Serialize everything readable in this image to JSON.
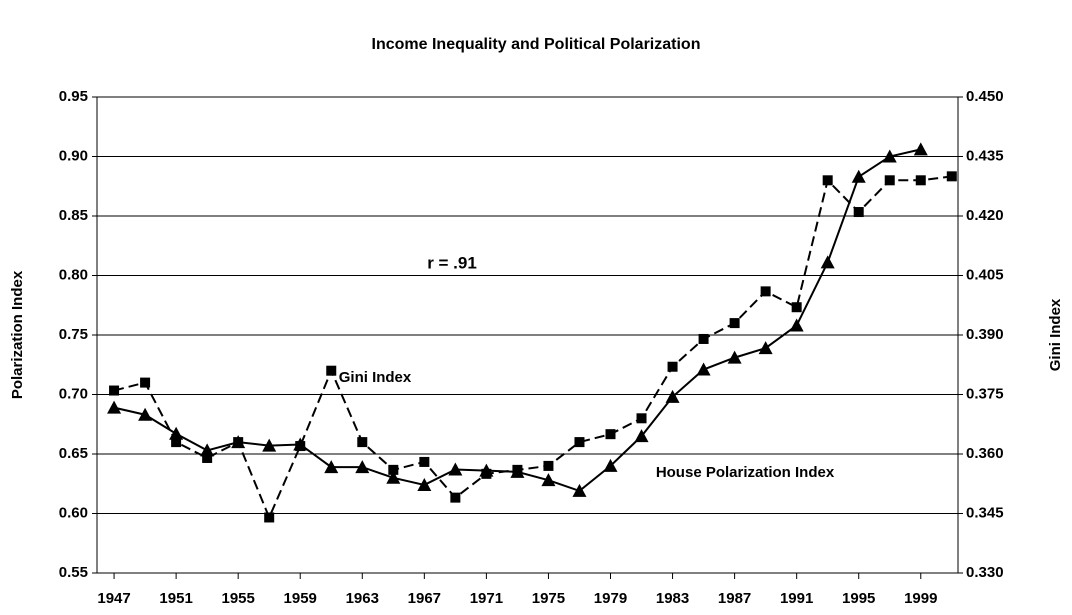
{
  "chart_data": {
    "type": "line",
    "title": "Income Inequality and Political Polarization",
    "ylabel": "Polarization Index",
    "y2label": "Gini Index",
    "annotations": [
      "r = .91",
      "Gini Index",
      "House Polarization Index"
    ],
    "x": [
      1947,
      1949,
      1951,
      1953,
      1955,
      1957,
      1959,
      1961,
      1963,
      1965,
      1967,
      1969,
      1971,
      1973,
      1975,
      1977,
      1979,
      1981,
      1983,
      1985,
      1987,
      1989,
      1991,
      1993,
      1995,
      1997,
      1999,
      2001
    ],
    "series": [
      {
        "name": "House Polarization Index",
        "color": "#000000",
        "marker": "triangle",
        "dash": false,
        "values": [
          0.689,
          0.683,
          0.667,
          0.653,
          0.66,
          0.657,
          0.658,
          0.639,
          0.639,
          0.63,
          0.624,
          0.637,
          0.636,
          0.635,
          0.628,
          0.619,
          0.64,
          0.665,
          0.698,
          0.721,
          0.731,
          0.739,
          0.758,
          0.811,
          0.883,
          0.9,
          0.906,
          null
        ]
      },
      {
        "name": "Gini Index",
        "color": "#000000",
        "marker": "square",
        "dash": true,
        "axis": "y2",
        "values": [
          0.376,
          0.378,
          0.363,
          0.359,
          0.363,
          0.344,
          0.362,
          0.381,
          0.363,
          0.356,
          0.358,
          0.349,
          0.355,
          0.356,
          0.357,
          0.363,
          0.365,
          0.369,
          0.382,
          0.389,
          0.393,
          0.401,
          0.397,
          0.429,
          0.421,
          0.429,
          0.429,
          0.43
        ]
      }
    ],
    "xlim": [
      1945.9,
      2001.4
    ],
    "xticks": [
      1947,
      1951,
      1955,
      1959,
      1963,
      1967,
      1971,
      1975,
      1979,
      1983,
      1987,
      1991,
      1995,
      1999
    ],
    "ylim": [
      0.55,
      0.95
    ],
    "yticks": [
      {
        "value": 0.55,
        "label": "0.55"
      },
      {
        "value": 0.6,
        "label": "0.60"
      },
      {
        "value": 0.65,
        "label": "0.65"
      },
      {
        "value": 0.7,
        "label": "0.70"
      },
      {
        "value": 0.75,
        "label": "0.75"
      },
      {
        "value": 0.8,
        "label": "0.80"
      },
      {
        "value": 0.85,
        "label": "0.85"
      },
      {
        "value": 0.9,
        "label": "0.90"
      },
      {
        "value": 0.95,
        "label": "0.95"
      }
    ],
    "y2lim": [
      0.33,
      0.45
    ],
    "y2ticks": [
      {
        "value": 0.33,
        "label": "0.330"
      },
      {
        "value": 0.345,
        "label": "0.345"
      },
      {
        "value": 0.36,
        "label": "0.360"
      },
      {
        "value": 0.375,
        "label": "0.375"
      },
      {
        "value": 0.39,
        "label": "0.390"
      },
      {
        "value": 0.405,
        "label": "0.405"
      },
      {
        "value": 0.42,
        "label": "0.420"
      },
      {
        "value": 0.435,
        "label": "0.435"
      },
      {
        "value": 0.45,
        "label": "0.450"
      }
    ],
    "grid": true
  }
}
